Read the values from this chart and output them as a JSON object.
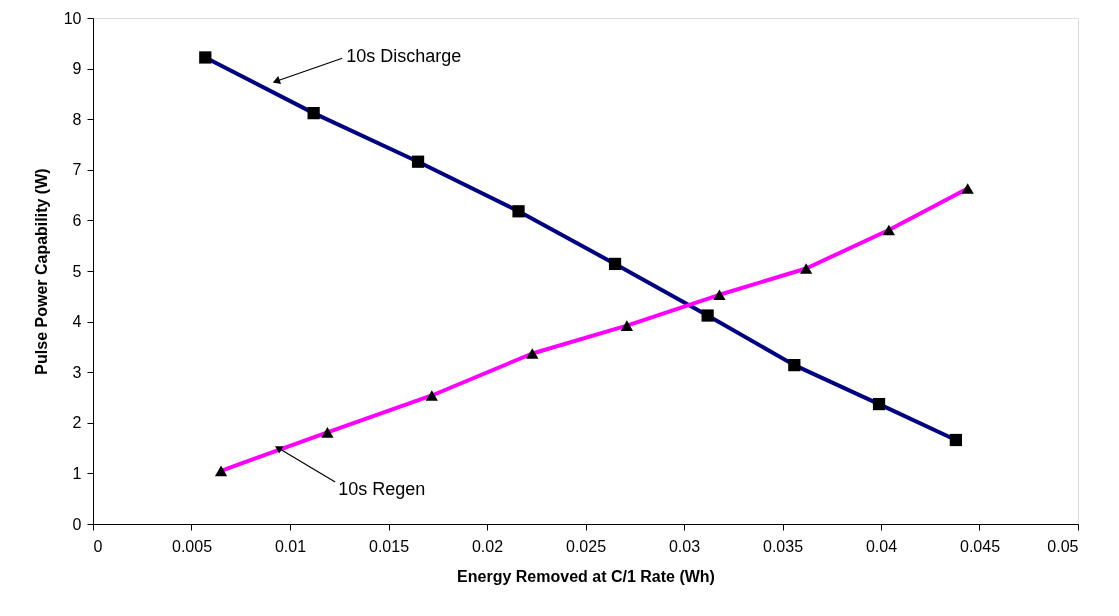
{
  "chart_data": {
    "type": "line",
    "xlabel": "Energy Removed at C/1 Rate (Wh)",
    "ylabel": "Pulse Power Capability (W)",
    "xlim": [
      0,
      0.05
    ],
    "xticks": [
      0,
      0.005,
      0.01,
      0.015,
      0.02,
      0.025,
      0.03,
      0.035,
      0.04,
      0.045,
      0.05
    ],
    "ylim": [
      0,
      10
    ],
    "yticks": [
      0,
      1,
      2,
      3,
      4,
      5,
      6,
      7,
      8,
      9,
      10
    ],
    "grid": false,
    "line_style": "solid",
    "series": [
      {
        "color": "#000080",
        "marker": "square",
        "x": [
          0.0057,
          0.0112,
          0.0165,
          0.0216,
          0.0265,
          0.0312,
          0.0356,
          0.0399,
          0.0438
        ],
        "values": [
          9.22,
          8.12,
          7.16,
          6.18,
          5.14,
          4.12,
          3.14,
          2.37,
          1.66
        ]
      },
      {
        "color": "#ff00ff",
        "marker": "triangle",
        "x": [
          0.0065,
          0.0119,
          0.0172,
          0.0223,
          0.0271,
          0.0318,
          0.0362,
          0.0404,
          0.0444
        ],
        "values": [
          1.05,
          1.81,
          2.54,
          3.37,
          3.92,
          4.53,
          5.05,
          5.81,
          6.63
        ]
      }
    ],
    "annotations": [
      {
        "text": "10s Discharge",
        "x": 0.0093,
        "y": 8.75
      },
      {
        "text": "10s Regen",
        "x": 0.0094,
        "y": 1.5
      }
    ]
  }
}
